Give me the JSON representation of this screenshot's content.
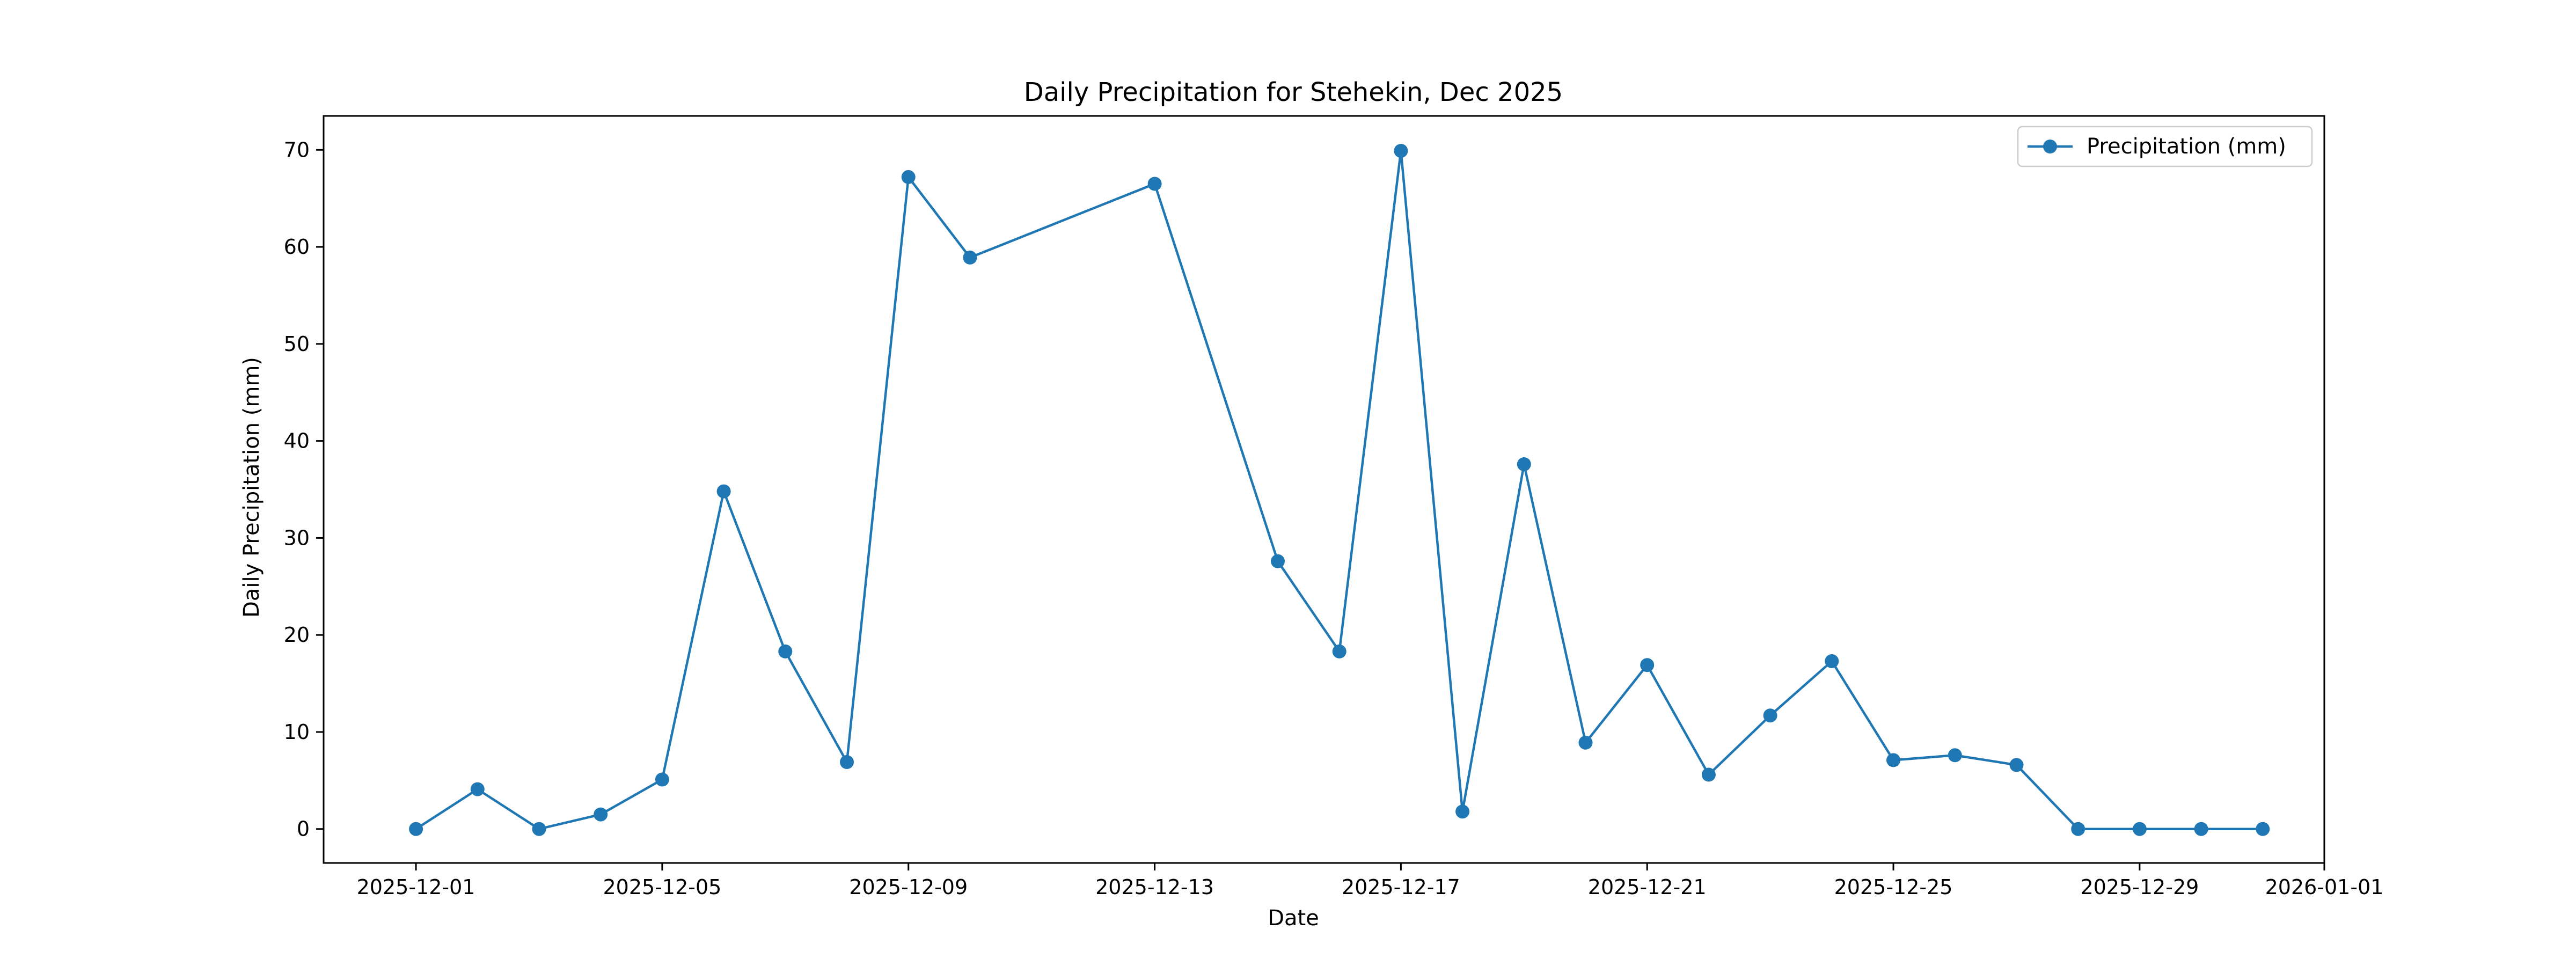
{
  "chart_data": {
    "type": "line",
    "title": "Daily Precipitation for Stehekin, Dec 2025",
    "xlabel": "Date",
    "ylabel": "Daily Precipitation (mm)",
    "xlim": [
      "2025-11-29.5",
      "2026-01-01"
    ],
    "ylim": [
      -3.5,
      73.5
    ],
    "x_ticks": [
      "2025-12-01",
      "2025-12-05",
      "2025-12-09",
      "2025-12-13",
      "2025-12-17",
      "2025-12-21",
      "2025-12-25",
      "2025-12-29",
      "2026-01-01"
    ],
    "y_ticks": [
      0,
      10,
      20,
      30,
      40,
      50,
      60,
      70
    ],
    "grid": false,
    "legend": "top-right",
    "series": [
      {
        "name": "Precipitation (mm)",
        "color": "#1f77b4",
        "marker": "circle",
        "x": [
          "2025-12-01",
          "2025-12-02",
          "2025-12-03",
          "2025-12-04",
          "2025-12-05",
          "2025-12-06",
          "2025-12-07",
          "2025-12-08",
          "2025-12-09",
          "2025-12-10",
          "2025-12-13",
          "2025-12-15",
          "2025-12-16",
          "2025-12-17",
          "2025-12-18",
          "2025-12-19",
          "2025-12-20",
          "2025-12-21",
          "2025-12-22",
          "2025-12-23",
          "2025-12-24",
          "2025-12-25",
          "2025-12-26",
          "2025-12-27",
          "2025-12-28",
          "2025-12-29",
          "2025-12-30",
          "2025-12-31"
        ],
        "values": [
          0.0,
          4.1,
          0.0,
          1.5,
          5.1,
          34.8,
          18.3,
          6.9,
          67.2,
          58.9,
          66.5,
          27.6,
          18.3,
          69.9,
          1.8,
          37.6,
          8.9,
          16.9,
          5.6,
          11.7,
          17.3,
          7.1,
          7.6,
          6.6,
          0.0,
          0.0,
          0.0,
          0.0
        ]
      }
    ]
  }
}
